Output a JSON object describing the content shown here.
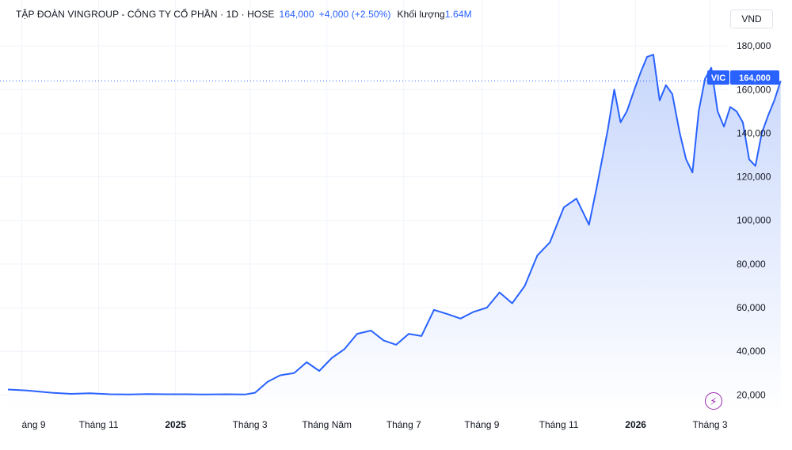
{
  "header": {
    "name": "TẬP ĐOÀN VINGROUP - CÔNG TY CỔ PHẦN · 1D · HOSE",
    "price": "164,000",
    "change": "+4,000 (+2.50%)",
    "volume_label": "Khối lượng",
    "volume": "1.64M",
    "currency": "VND"
  },
  "price_tag": {
    "symbol": "VIC",
    "value": "164,000"
  },
  "colors": {
    "line": "#2962ff",
    "fill_top": "#c7d6fb",
    "fill_bottom": "#ffffff",
    "grid": "#f0f3fa",
    "dotted": "#2962ff"
  },
  "icons": {
    "bolt": "lightning-icon"
  },
  "chart_data": {
    "type": "area",
    "title": "",
    "xlabel": "",
    "ylabel": "",
    "ylim": [
      2000,
      192000
    ],
    "y_ticks": [
      20000,
      40000,
      60000,
      80000,
      100000,
      120000,
      140000,
      160000,
      180000
    ],
    "y_tick_labels": [
      "20,000",
      "40,000",
      "60,000",
      "80,000",
      "100,000",
      "120,000",
      "140,000",
      "160,000",
      "180,000"
    ],
    "x_tick_labels": [
      {
        "label": "áng 9",
        "x": "2024-09-01",
        "bold": false
      },
      {
        "label": "Tháng 11",
        "x": "2024-11-01",
        "bold": false
      },
      {
        "label": "2025",
        "x": "2025-01-01",
        "bold": true
      },
      {
        "label": "Tháng 3",
        "x": "2025-03-01",
        "bold": false
      },
      {
        "label": "Tháng Năm",
        "x": "2025-05-01",
        "bold": false
      },
      {
        "label": "Tháng 7",
        "x": "2025-07-01",
        "bold": false
      },
      {
        "label": "Tháng 9",
        "x": "2025-09-01",
        "bold": false
      },
      {
        "label": "Tháng 11",
        "x": "2025-11-01",
        "bold": false
      },
      {
        "label": "2026",
        "x": "2026-01-01",
        "bold": true
      },
      {
        "label": "Tháng 3",
        "x": "2026-03-01",
        "bold": false
      }
    ],
    "x_range": [
      "2024-08-21",
      "2026-05-05"
    ],
    "grid": true,
    "last_value": 164000,
    "series": [
      {
        "name": "VIC",
        "x": [
          "2024-08-21",
          "2024-09-05",
          "2024-09-25",
          "2024-10-10",
          "2024-10-25",
          "2024-11-10",
          "2024-11-25",
          "2024-12-10",
          "2024-12-25",
          "2025-01-10",
          "2025-01-25",
          "2025-02-10",
          "2025-02-25",
          "2025-03-05",
          "2025-03-15",
          "2025-03-25",
          "2025-04-05",
          "2025-04-15",
          "2025-04-25",
          "2025-05-05",
          "2025-05-15",
          "2025-05-25",
          "2025-06-05",
          "2025-06-15",
          "2025-06-25",
          "2025-07-05",
          "2025-07-15",
          "2025-07-25",
          "2025-08-05",
          "2025-08-15",
          "2025-08-25",
          "2025-09-05",
          "2025-09-15",
          "2025-09-25",
          "2025-10-05",
          "2025-10-15",
          "2025-10-25",
          "2025-11-05",
          "2025-11-15",
          "2025-11-25",
          "2025-12-01",
          "2025-12-05",
          "2025-12-10",
          "2025-12-15",
          "2025-12-20",
          "2025-12-25",
          "2025-12-31",
          "2026-01-05",
          "2026-01-10",
          "2026-01-15",
          "2026-01-20",
          "2026-01-25",
          "2026-01-30",
          "2026-02-05",
          "2026-02-10",
          "2026-02-15",
          "2026-02-20",
          "2026-02-25",
          "2026-03-02",
          "2026-03-07",
          "2026-03-12",
          "2026-03-17",
          "2026-03-22",
          "2026-03-27",
          "2026-04-01",
          "2026-04-06",
          "2026-04-11",
          "2026-04-16",
          "2026-04-21",
          "2026-04-26"
        ],
        "values": [
          22500,
          22000,
          21000,
          20500,
          20800,
          20300,
          20200,
          20400,
          20300,
          20300,
          20200,
          20300,
          20200,
          21000,
          26000,
          29000,
          30000,
          35000,
          31000,
          37000,
          41000,
          48000,
          49500,
          45000,
          43000,
          48000,
          47000,
          59000,
          57000,
          55000,
          58000,
          60000,
          67000,
          62000,
          70000,
          84000,
          90000,
          106000,
          110000,
          98000,
          115000,
          127000,
          142000,
          160000,
          145000,
          150000,
          160000,
          168000,
          175000,
          176000,
          155000,
          162000,
          158000,
          140000,
          128000,
          122000,
          150000,
          165000,
          170000,
          150000,
          143000,
          152000,
          150000,
          145000,
          128000,
          125000,
          140000,
          148000,
          155000,
          164000
        ]
      }
    ]
  }
}
